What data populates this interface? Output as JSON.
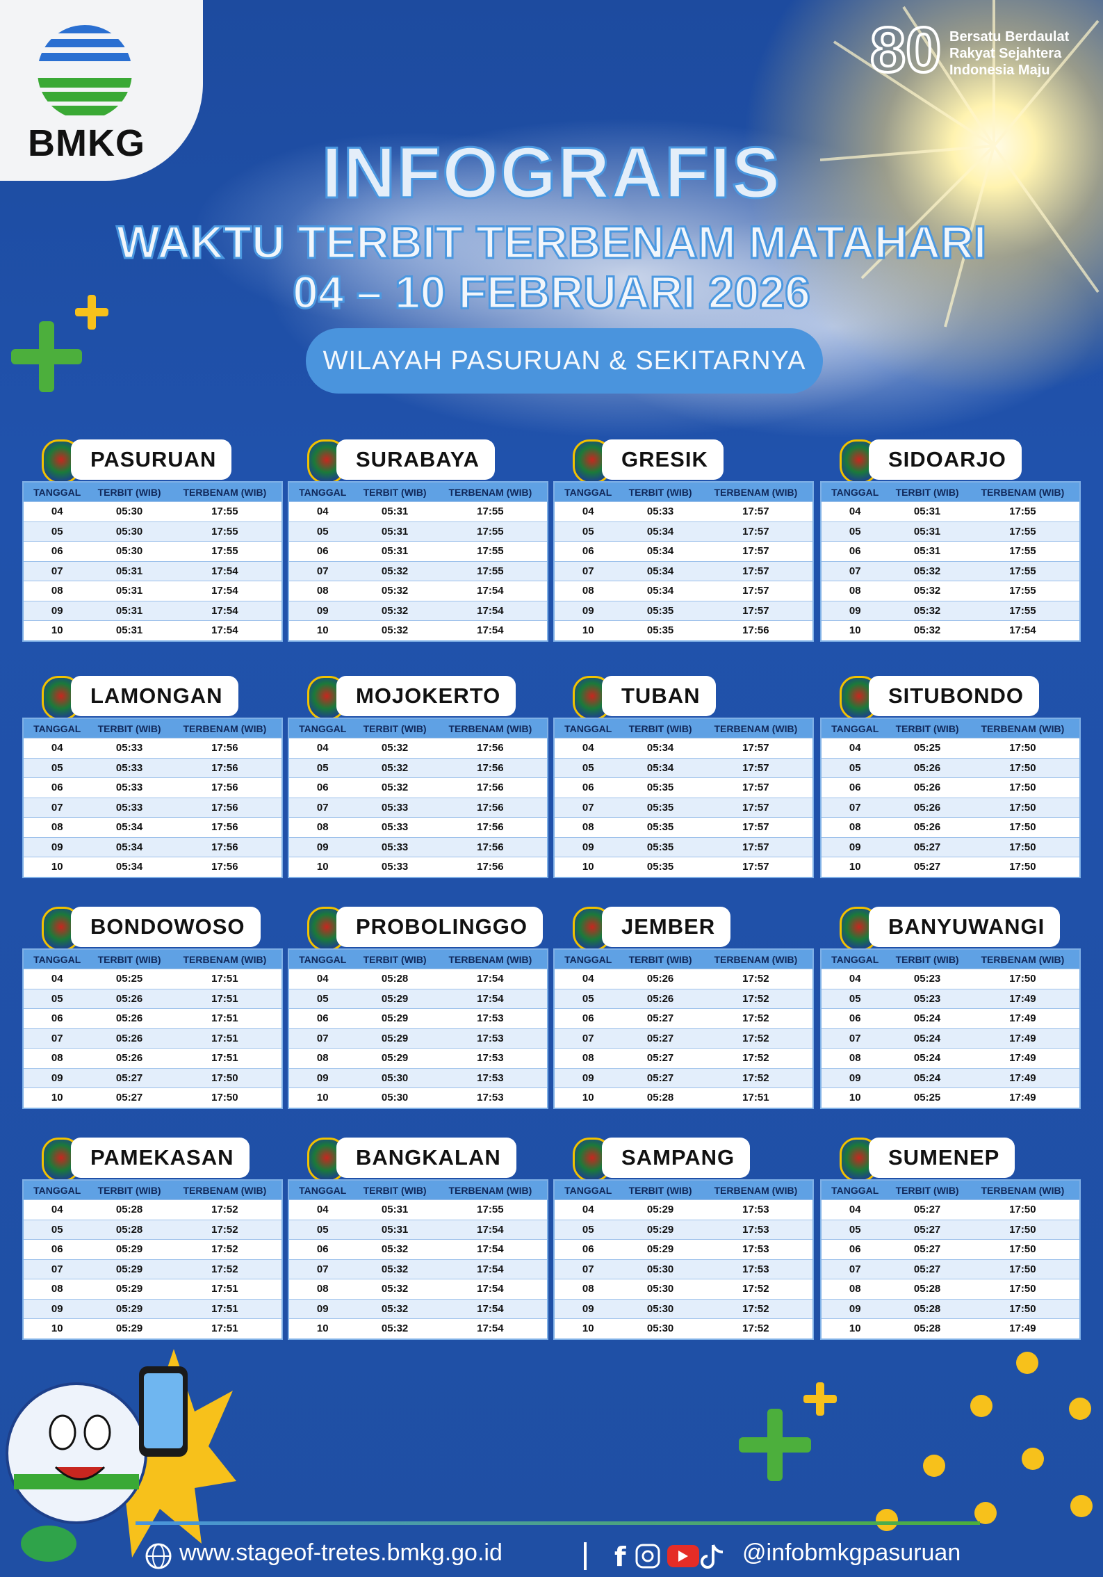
{
  "logo": {
    "text": "BMKG"
  },
  "anniversary": {
    "number": "80",
    "tagline": [
      "Bersatu Berdaulat",
      "Rakyat Sejahtera",
      "Indonesia Maju"
    ]
  },
  "header": {
    "title": "INFOGRAFIS",
    "subtitle": "WAKTU TERBIT TERBENAM MATAHARI",
    "period": "04 – 10 FEBRUARI 2026",
    "region": "WILAYAH PASURUAN & SEKITARNYA"
  },
  "table_header": [
    "TANGGAL",
    "TERBIT (WIB)",
    "TERBENAM (WIB)"
  ],
  "regions": [
    {
      "name": "PASURUAN",
      "rows": [
        [
          "04",
          "05:30",
          "17:55"
        ],
        [
          "05",
          "05:30",
          "17:55"
        ],
        [
          "06",
          "05:30",
          "17:55"
        ],
        [
          "07",
          "05:31",
          "17:54"
        ],
        [
          "08",
          "05:31",
          "17:54"
        ],
        [
          "09",
          "05:31",
          "17:54"
        ],
        [
          "10",
          "05:31",
          "17:54"
        ]
      ]
    },
    {
      "name": "SURABAYA",
      "rows": [
        [
          "04",
          "05:31",
          "17:55"
        ],
        [
          "05",
          "05:31",
          "17:55"
        ],
        [
          "06",
          "05:31",
          "17:55"
        ],
        [
          "07",
          "05:32",
          "17:55"
        ],
        [
          "08",
          "05:32",
          "17:54"
        ],
        [
          "09",
          "05:32",
          "17:54"
        ],
        [
          "10",
          "05:32",
          "17:54"
        ]
      ]
    },
    {
      "name": "GRESIK",
      "rows": [
        [
          "04",
          "05:33",
          "17:57"
        ],
        [
          "05",
          "05:34",
          "17:57"
        ],
        [
          "06",
          "05:34",
          "17:57"
        ],
        [
          "07",
          "05:34",
          "17:57"
        ],
        [
          "08",
          "05:34",
          "17:57"
        ],
        [
          "09",
          "05:35",
          "17:57"
        ],
        [
          "10",
          "05:35",
          "17:56"
        ]
      ]
    },
    {
      "name": "SIDOARJO",
      "rows": [
        [
          "04",
          "05:31",
          "17:55"
        ],
        [
          "05",
          "05:31",
          "17:55"
        ],
        [
          "06",
          "05:31",
          "17:55"
        ],
        [
          "07",
          "05:32",
          "17:55"
        ],
        [
          "08",
          "05:32",
          "17:55"
        ],
        [
          "09",
          "05:32",
          "17:55"
        ],
        [
          "10",
          "05:32",
          "17:54"
        ]
      ]
    },
    {
      "name": "LAMONGAN",
      "rows": [
        [
          "04",
          "05:33",
          "17:56"
        ],
        [
          "05",
          "05:33",
          "17:56"
        ],
        [
          "06",
          "05:33",
          "17:56"
        ],
        [
          "07",
          "05:33",
          "17:56"
        ],
        [
          "08",
          "05:34",
          "17:56"
        ],
        [
          "09",
          "05:34",
          "17:56"
        ],
        [
          "10",
          "05:34",
          "17:56"
        ]
      ]
    },
    {
      "name": "MOJOKERTO",
      "rows": [
        [
          "04",
          "05:32",
          "17:56"
        ],
        [
          "05",
          "05:32",
          "17:56"
        ],
        [
          "06",
          "05:32",
          "17:56"
        ],
        [
          "07",
          "05:33",
          "17:56"
        ],
        [
          "08",
          "05:33",
          "17:56"
        ],
        [
          "09",
          "05:33",
          "17:56"
        ],
        [
          "10",
          "05:33",
          "17:56"
        ]
      ]
    },
    {
      "name": "TUBAN",
      "rows": [
        [
          "04",
          "05:34",
          "17:57"
        ],
        [
          "05",
          "05:34",
          "17:57"
        ],
        [
          "06",
          "05:35",
          "17:57"
        ],
        [
          "07",
          "05:35",
          "17:57"
        ],
        [
          "08",
          "05:35",
          "17:57"
        ],
        [
          "09",
          "05:35",
          "17:57"
        ],
        [
          "10",
          "05:35",
          "17:57"
        ]
      ]
    },
    {
      "name": "SITUBONDO",
      "rows": [
        [
          "04",
          "05:25",
          "17:50"
        ],
        [
          "05",
          "05:26",
          "17:50"
        ],
        [
          "06",
          "05:26",
          "17:50"
        ],
        [
          "07",
          "05:26",
          "17:50"
        ],
        [
          "08",
          "05:26",
          "17:50"
        ],
        [
          "09",
          "05:27",
          "17:50"
        ],
        [
          "10",
          "05:27",
          "17:50"
        ]
      ]
    },
    {
      "name": "BONDOWOSO",
      "rows": [
        [
          "04",
          "05:25",
          "17:51"
        ],
        [
          "05",
          "05:26",
          "17:51"
        ],
        [
          "06",
          "05:26",
          "17:51"
        ],
        [
          "07",
          "05:26",
          "17:51"
        ],
        [
          "08",
          "05:26",
          "17:51"
        ],
        [
          "09",
          "05:27",
          "17:50"
        ],
        [
          "10",
          "05:27",
          "17:50"
        ]
      ]
    },
    {
      "name": "PROBOLINGGO",
      "rows": [
        [
          "04",
          "05:28",
          "17:54"
        ],
        [
          "05",
          "05:29",
          "17:54"
        ],
        [
          "06",
          "05:29",
          "17:53"
        ],
        [
          "07",
          "05:29",
          "17:53"
        ],
        [
          "08",
          "05:29",
          "17:53"
        ],
        [
          "09",
          "05:30",
          "17:53"
        ],
        [
          "10",
          "05:30",
          "17:53"
        ]
      ]
    },
    {
      "name": "JEMBER",
      "rows": [
        [
          "04",
          "05:26",
          "17:52"
        ],
        [
          "05",
          "05:26",
          "17:52"
        ],
        [
          "06",
          "05:27",
          "17:52"
        ],
        [
          "07",
          "05:27",
          "17:52"
        ],
        [
          "08",
          "05:27",
          "17:52"
        ],
        [
          "09",
          "05:27",
          "17:52"
        ],
        [
          "10",
          "05:28",
          "17:51"
        ]
      ]
    },
    {
      "name": "BANYUWANGI",
      "rows": [
        [
          "04",
          "05:23",
          "17:50"
        ],
        [
          "05",
          "05:23",
          "17:49"
        ],
        [
          "06",
          "05:24",
          "17:49"
        ],
        [
          "07",
          "05:24",
          "17:49"
        ],
        [
          "08",
          "05:24",
          "17:49"
        ],
        [
          "09",
          "05:24",
          "17:49"
        ],
        [
          "10",
          "05:25",
          "17:49"
        ]
      ]
    },
    {
      "name": "PAMEKASAN",
      "rows": [
        [
          "04",
          "05:28",
          "17:52"
        ],
        [
          "05",
          "05:28",
          "17:52"
        ],
        [
          "06",
          "05:29",
          "17:52"
        ],
        [
          "07",
          "05:29",
          "17:52"
        ],
        [
          "08",
          "05:29",
          "17:51"
        ],
        [
          "09",
          "05:29",
          "17:51"
        ],
        [
          "10",
          "05:29",
          "17:51"
        ]
      ]
    },
    {
      "name": "BANGKALAN",
      "rows": [
        [
          "04",
          "05:31",
          "17:55"
        ],
        [
          "05",
          "05:31",
          "17:54"
        ],
        [
          "06",
          "05:32",
          "17:54"
        ],
        [
          "07",
          "05:32",
          "17:54"
        ],
        [
          "08",
          "05:32",
          "17:54"
        ],
        [
          "09",
          "05:32",
          "17:54"
        ],
        [
          "10",
          "05:32",
          "17:54"
        ]
      ]
    },
    {
      "name": "SAMPANG",
      "rows": [
        [
          "04",
          "05:29",
          "17:53"
        ],
        [
          "05",
          "05:29",
          "17:53"
        ],
        [
          "06",
          "05:29",
          "17:53"
        ],
        [
          "07",
          "05:30",
          "17:53"
        ],
        [
          "08",
          "05:30",
          "17:52"
        ],
        [
          "09",
          "05:30",
          "17:52"
        ],
        [
          "10",
          "05:30",
          "17:52"
        ]
      ]
    },
    {
      "name": "SUMENEP",
      "rows": [
        [
          "04",
          "05:27",
          "17:50"
        ],
        [
          "05",
          "05:27",
          "17:50"
        ],
        [
          "06",
          "05:27",
          "17:50"
        ],
        [
          "07",
          "05:27",
          "17:50"
        ],
        [
          "08",
          "05:28",
          "17:50"
        ],
        [
          "09",
          "05:28",
          "17:50"
        ],
        [
          "10",
          "05:28",
          "17:49"
        ]
      ]
    }
  ],
  "footer": {
    "website": "www.stageof-tretes.bmkg.go.id",
    "social": "@infobmkgpasuruan"
  }
}
